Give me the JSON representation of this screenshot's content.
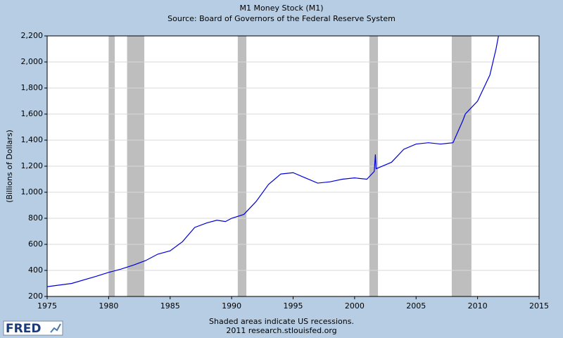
{
  "chart_data": {
    "type": "line",
    "title": "M1 Money Stock (M1)",
    "subtitle": "Source: Board of Governors of the Federal Reserve System",
    "y_label": "(Billions of Dollars)",
    "note": "Shaded areas indicate US recessions.",
    "source": "2011 research.stlouisfed.org",
    "logo": "FRED",
    "color": "#0000dd",
    "recession_color": "#bebebe",
    "recessions": [
      [
        1980.0,
        1980.5
      ],
      [
        1981.5,
        1982.9
      ],
      [
        1990.5,
        1991.2
      ],
      [
        2001.2,
        2001.9
      ],
      [
        2007.9,
        2009.5
      ]
    ],
    "x": [
      1975,
      1977,
      1979,
      1980,
      1981,
      1982,
      1983,
      1984,
      1985,
      1986,
      1987,
      1988,
      1988.8,
      1989.5,
      1990,
      1991,
      1992,
      1993,
      1994,
      1995,
      1996,
      1997,
      1998,
      1999,
      2000,
      2001,
      2001.6,
      2001.69,
      2001.75,
      2002,
      2003,
      2004,
      2005,
      2006,
      2007,
      2008,
      2008.8,
      2009,
      2010,
      2011,
      2011.5,
      2011.7
    ],
    "values": [
      275,
      300,
      355,
      385,
      410,
      440,
      475,
      525,
      550,
      620,
      730,
      765,
      785,
      775,
      800,
      830,
      930,
      1060,
      1140,
      1150,
      1110,
      1070,
      1080,
      1100,
      1110,
      1100,
      1160,
      1290,
      1180,
      1190,
      1230,
      1330,
      1370,
      1380,
      1370,
      1380,
      1550,
      1600,
      1700,
      1900,
      2100,
      2200
    ],
    "xlim": [
      1975,
      2015
    ],
    "xticks": [
      1975,
      1980,
      1985,
      1990,
      1995,
      2000,
      2005,
      2010,
      2015
    ],
    "ylim": [
      200,
      2200
    ],
    "yticks": [
      200,
      400,
      600,
      800,
      {
        "value": 1000,
        "label": "1,000"
      },
      {
        "value": 1200,
        "label": "1,200"
      },
      {
        "value": 1400,
        "label": "1,400"
      },
      {
        "value": 1600,
        "label": "1,600"
      },
      {
        "value": 1800,
        "label": "1,800"
      },
      {
        "value": 2000,
        "label": "2,000"
      },
      {
        "value": 2200,
        "label": "2,200"
      }
    ],
    "grid": true
  }
}
